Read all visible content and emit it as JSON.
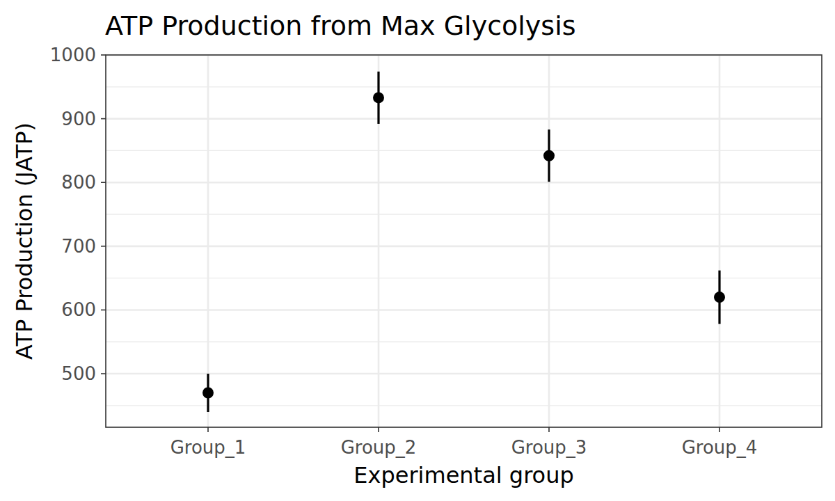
{
  "chart_data": {
    "type": "point",
    "title": "ATP Production from Max Glycolysis",
    "x_label": "Experimental group",
    "y_label": "ATP Production (JATP)",
    "categories": [
      "Group_1",
      "Group_2",
      "Group_3",
      "Group_4"
    ],
    "values": [
      470,
      933,
      842,
      620
    ],
    "errors": [
      30,
      41,
      41,
      42
    ],
    "color": "#000000",
    "ylim": [
      416,
      1000
    ],
    "yticks": [
      500,
      600,
      700,
      800,
      900,
      1000
    ],
    "grid": true
  }
}
